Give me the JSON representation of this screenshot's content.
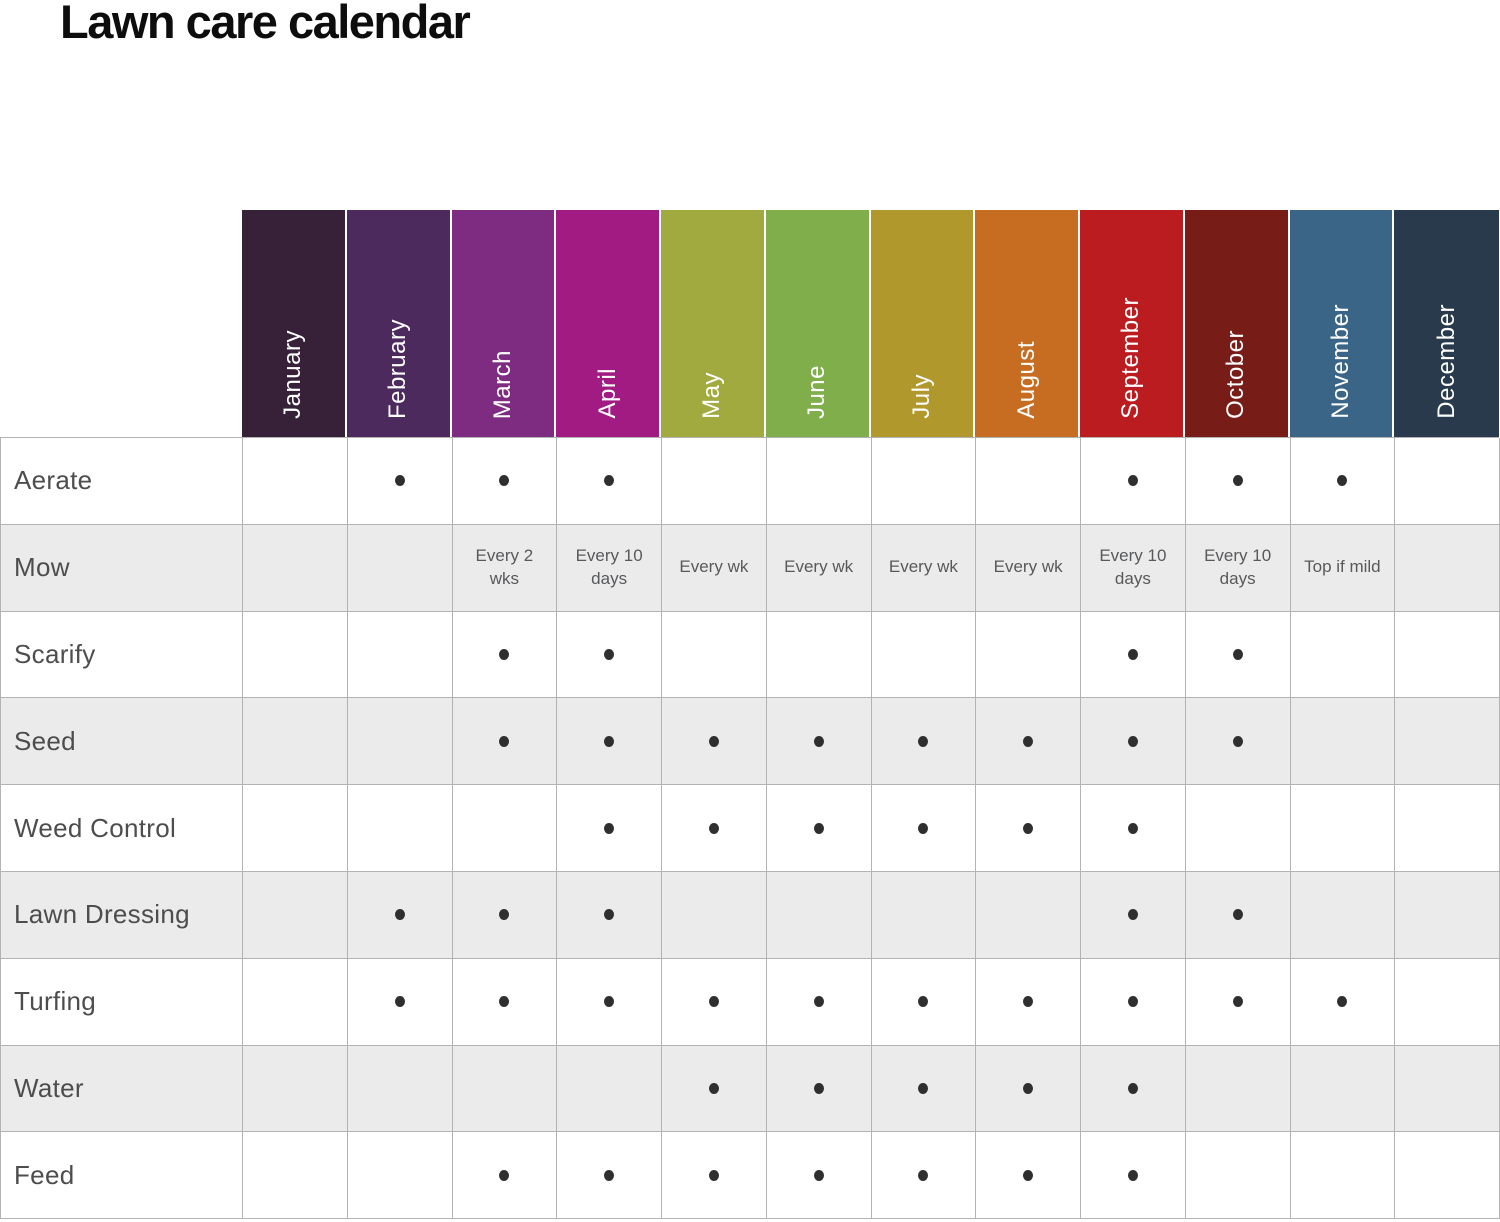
{
  "title": "Lawn care calendar",
  "colors": {
    "grid_line": "#b3b3b3",
    "row_alt_background": "#ebebeb",
    "dot": "#2f2f2f",
    "row_label_text": "#4d4d4d",
    "cell_text": "#58595b",
    "title_text": "#0d0d0d",
    "month_label_text": "#ffffff"
  },
  "months": [
    {
      "label": "January",
      "color": "#362139"
    },
    {
      "label": "February",
      "color": "#4c2a5e"
    },
    {
      "label": "March",
      "color": "#7e2c81"
    },
    {
      "label": "April",
      "color": "#a11b82"
    },
    {
      "label": "May",
      "color": "#a0aa3e"
    },
    {
      "label": "June",
      "color": "#7fae4b"
    },
    {
      "label": "July",
      "color": "#b0982c"
    },
    {
      "label": "August",
      "color": "#c76d22"
    },
    {
      "label": "September",
      "color": "#bb1c20"
    },
    {
      "label": "October",
      "color": "#771c16"
    },
    {
      "label": "November",
      "color": "#3a6587"
    },
    {
      "label": "December",
      "color": "#283a4b"
    }
  ],
  "chart_data": {
    "type": "table",
    "title": "Lawn care calendar",
    "columns": [
      "January",
      "February",
      "March",
      "April",
      "May",
      "June",
      "July",
      "August",
      "September",
      "October",
      "November",
      "December"
    ],
    "rows": [
      {
        "task": "Aerate",
        "cells": [
          "",
          "•",
          "•",
          "•",
          "",
          "",
          "",
          "",
          "•",
          "•",
          "•",
          ""
        ]
      },
      {
        "task": "Mow",
        "cells": [
          "",
          "",
          "Every 2 wks",
          "Every 10 days",
          "Every wk",
          "Every wk",
          "Every wk",
          "Every wk",
          "Every 10 days",
          "Every 10 days",
          "Top if mild",
          ""
        ]
      },
      {
        "task": "Scarify",
        "cells": [
          "",
          "",
          "•",
          "•",
          "",
          "",
          "",
          "",
          "•",
          "•",
          "",
          ""
        ]
      },
      {
        "task": "Seed",
        "cells": [
          "",
          "",
          "•",
          "•",
          "•",
          "•",
          "•",
          "•",
          "•",
          "•",
          "",
          ""
        ]
      },
      {
        "task": "Weed Control",
        "cells": [
          "",
          "",
          "",
          "•",
          "•",
          "•",
          "•",
          "•",
          "•",
          "",
          "",
          ""
        ]
      },
      {
        "task": "Lawn Dressing",
        "cells": [
          "",
          "•",
          "•",
          "•",
          "",
          "",
          "",
          "",
          "•",
          "•",
          "",
          ""
        ]
      },
      {
        "task": "Turfing",
        "cells": [
          "",
          "•",
          "•",
          "•",
          "•",
          "•",
          "•",
          "•",
          "•",
          "•",
          "•",
          ""
        ]
      },
      {
        "task": "Water",
        "cells": [
          "",
          "",
          "",
          "",
          "•",
          "•",
          "•",
          "•",
          "•",
          "",
          "",
          ""
        ]
      },
      {
        "task": "Feed",
        "cells": [
          "",
          "",
          "•",
          "•",
          "•",
          "•",
          "•",
          "•",
          "•",
          "",
          "",
          ""
        ]
      }
    ]
  }
}
